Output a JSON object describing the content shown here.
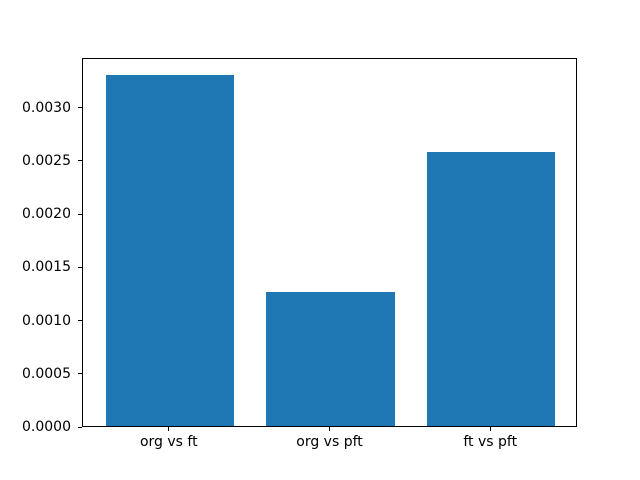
{
  "chart_data": {
    "type": "bar",
    "categories": [
      "org vs ft",
      "org vs pft",
      "ft vs pft"
    ],
    "values": [
      0.0033,
      0.00126,
      0.00257
    ],
    "title": "",
    "xlabel": "",
    "ylabel": "",
    "ylim": [
      0,
      0.003465
    ],
    "yticks": [
      0,
      0.0005,
      0.001,
      0.0015,
      0.002,
      0.0025,
      0.003
    ],
    "ytick_labels": [
      "0.0000",
      "0.0005",
      "0.0010",
      "0.0015",
      "0.0020",
      "0.0025",
      "0.0030"
    ],
    "bar_color": "#1f77b4",
    "axis_color": "#000000",
    "background_color": "#ffffff",
    "grid": false,
    "legend": null
  }
}
